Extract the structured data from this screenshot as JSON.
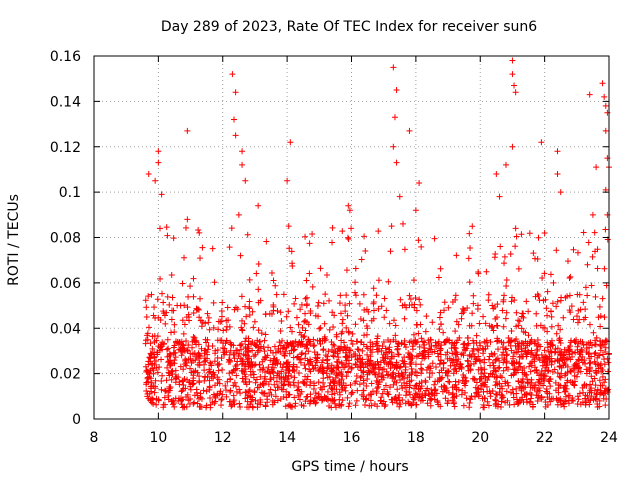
{
  "chart_data": {
    "type": "scatter",
    "title": "Day 289 of 2023, Rate Of TEC Index for receiver sun6",
    "xlabel": "GPS time / hours",
    "ylabel": "ROTI / TECUs",
    "xlim": [
      8,
      24
    ],
    "ylim": [
      0,
      0.16
    ],
    "x_ticks": [
      8,
      10,
      12,
      14,
      16,
      18,
      20,
      22,
      24
    ],
    "x_tick_labels": [
      "8",
      "10",
      "12",
      "14",
      "16",
      "18",
      "20",
      "22",
      "24"
    ],
    "y_ticks": [
      0,
      0.02,
      0.04,
      0.06,
      0.08,
      0.1,
      0.12,
      0.14,
      0.16
    ],
    "y_tick_labels": [
      "0",
      "0.02",
      "0.04",
      "0.06",
      "0.08",
      "0.1",
      "0.12",
      "0.14",
      "0.16"
    ],
    "grid": true,
    "marker": "+",
    "series": [
      {
        "name": "ROTI",
        "color": "#ff0000",
        "x_range": [
          9.6,
          24
        ],
        "typical_range": [
          0.005,
          0.035
        ],
        "outliers": [
          [
            9.7,
            0.108
          ],
          [
            9.9,
            0.105
          ],
          [
            10.0,
            0.118
          ],
          [
            10.0,
            0.113
          ],
          [
            10.1,
            0.099
          ],
          [
            10.05,
            0.084
          ],
          [
            10.9,
            0.127
          ],
          [
            10.9,
            0.088
          ],
          [
            12.3,
            0.152
          ],
          [
            12.4,
            0.144
          ],
          [
            12.35,
            0.132
          ],
          [
            12.4,
            0.125
          ],
          [
            12.6,
            0.118
          ],
          [
            12.6,
            0.112
          ],
          [
            12.7,
            0.105
          ],
          [
            12.5,
            0.09
          ],
          [
            13.1,
            0.094
          ],
          [
            14.1,
            0.122
          ],
          [
            14.0,
            0.105
          ],
          [
            14.05,
            0.085
          ],
          [
            15.9,
            0.094
          ],
          [
            15.95,
            0.092
          ],
          [
            17.3,
            0.155
          ],
          [
            17.4,
            0.145
          ],
          [
            17.35,
            0.133
          ],
          [
            17.3,
            0.12
          ],
          [
            17.4,
            0.113
          ],
          [
            17.8,
            0.127
          ],
          [
            17.5,
            0.098
          ],
          [
            17.6,
            0.086
          ],
          [
            18.1,
            0.104
          ],
          [
            18.0,
            0.092
          ],
          [
            20.5,
            0.108
          ],
          [
            20.6,
            0.098
          ],
          [
            20.8,
            0.112
          ],
          [
            21.0,
            0.158
          ],
          [
            21.0,
            0.152
          ],
          [
            21.05,
            0.147
          ],
          [
            21.1,
            0.144
          ],
          [
            21.0,
            0.12
          ],
          [
            21.1,
            0.084
          ],
          [
            21.9,
            0.122
          ],
          [
            22.4,
            0.118
          ],
          [
            22.4,
            0.108
          ],
          [
            22.5,
            0.1
          ],
          [
            22.0,
            0.082
          ],
          [
            23.4,
            0.143
          ],
          [
            23.6,
            0.111
          ],
          [
            23.5,
            0.09
          ],
          [
            23.8,
            0.148
          ],
          [
            23.85,
            0.142
          ],
          [
            23.9,
            0.138
          ],
          [
            23.95,
            0.135
          ],
          [
            23.9,
            0.127
          ],
          [
            23.95,
            0.115
          ],
          [
            24.0,
            0.111
          ],
          [
            23.9,
            0.101
          ],
          [
            23.95,
            0.09
          ]
        ]
      }
    ]
  }
}
